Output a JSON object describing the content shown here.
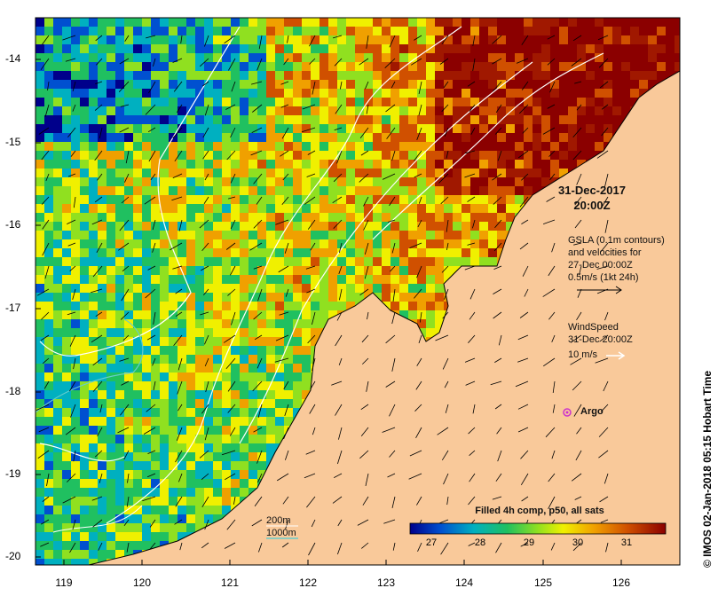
{
  "map": {
    "title_date": "31-Dec-2017",
    "title_time": "20:00Z",
    "gsla_lines": [
      "GSLA (0.1m contours)",
      "and velocities for",
      "27-Dec 00:00Z",
      "0.5m/s (1kt 24h)"
    ],
    "wind_lines": [
      "WindSpeed",
      "31-Dec 20:00Z"
    ],
    "wind_unit": "10 m/s",
    "argo_label": "Argo",
    "colorbar_title": "Filled 4h comp, p50, all sats",
    "colorbar_ticks": [
      "27",
      "28",
      "29",
      "30",
      "31"
    ],
    "colorbar_range": [
      26.3,
      31.6
    ],
    "depth_labels": [
      "200m",
      "1000m"
    ],
    "credit": "© IMOS 02-Jan-2018 05:15 Hobart Time",
    "lat_ticks": [
      "-14",
      "-15",
      "-16",
      "-17",
      "-18",
      "-19",
      "-20"
    ],
    "lon_ticks": [
      "119",
      "120",
      "121",
      "122",
      "123",
      "124",
      "125",
      "126"
    ],
    "colors": {
      "land": "#f9c99a",
      "white_contour": "#ffffff",
      "depth_200m": "#ffffff",
      "depth_1000m": "#66cccc",
      "argo_marker": "#cc33cc"
    }
  }
}
